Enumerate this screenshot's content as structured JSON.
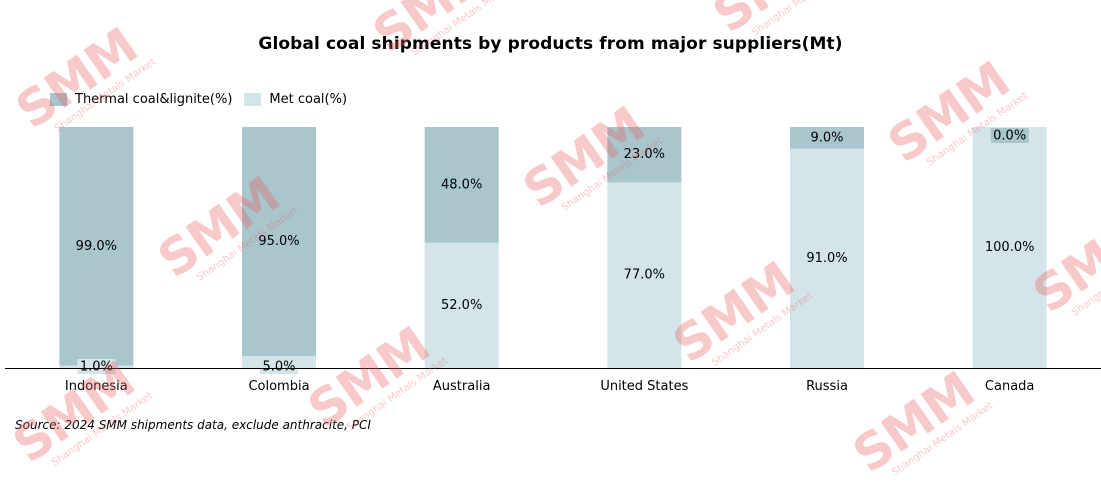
{
  "chart_data": {
    "type": "bar",
    "stacked": true,
    "title": "Global coal shipments by products from major suppliers(Mt)",
    "categories": [
      "Indonesia",
      "Colombia",
      "Australia",
      "United States",
      "Russia",
      "Canada"
    ],
    "series": [
      {
        "name": "Thermal coal&lignite(%)",
        "values": [
          99.0,
          95.0,
          48.0,
          23.0,
          9.0,
          0.0
        ],
        "labels": [
          "99.0%",
          "95.0%",
          "48.0%",
          "23.0%",
          "9.0%",
          "0.0%"
        ]
      },
      {
        "name": "Met coal(%)",
        "values": [
          1.0,
          5.0,
          52.0,
          77.0,
          91.0,
          100.0
        ],
        "labels": [
          "1.0%",
          "5.0%",
          "52.0%",
          "77.0%",
          "91.0%",
          "100.0%"
        ]
      }
    ],
    "ylim": [
      0,
      100
    ],
    "grid": false,
    "legend_position": "top-left",
    "xlabel": "",
    "ylabel": ""
  },
  "colors": {
    "thermal": "#a8c6cb",
    "met": "#d3e5e9",
    "axis": "#000000",
    "watermark": "#e86060"
  },
  "source_note": "Source: 2024 SMM shipments data, exclude anthracite, PCI",
  "watermark": {
    "text": "SMM",
    "subtext": "Shanghai Metals Market"
  }
}
